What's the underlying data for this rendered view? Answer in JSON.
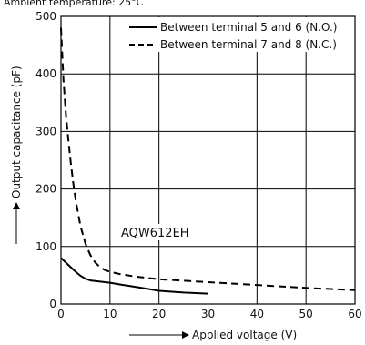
{
  "chart_data": {
    "type": "line",
    "title": "Ambient temperature: 25°C",
    "xlabel": "Applied voltage (V)",
    "ylabel": "Output capacitance (pF)",
    "xlim": [
      0,
      60
    ],
    "ylim": [
      0,
      500
    ],
    "x_ticks": [
      0,
      10,
      20,
      30,
      40,
      50,
      60
    ],
    "y_ticks": [
      0,
      100,
      200,
      300,
      400,
      500
    ],
    "grid": true,
    "legend_position": "top-right",
    "annotation": "AQW612EH",
    "series": [
      {
        "name": "Between terminal 5 and 6 (N.O.)",
        "style": "solid",
        "x": [
          0,
          1,
          2,
          3,
          4,
          5,
          6,
          8,
          10,
          12,
          15,
          18,
          20,
          25,
          30
        ],
        "y": [
          80,
          72,
          64,
          56,
          49,
          44,
          41,
          39,
          37,
          34,
          30,
          26,
          23,
          20,
          18
        ]
      },
      {
        "name": "Between terminal 7 and 8 (N.C.)",
        "style": "dashed",
        "x": [
          0,
          0.5,
          1,
          1.5,
          2,
          2.5,
          3,
          4,
          5,
          6,
          7,
          8,
          9,
          10,
          12,
          15,
          20,
          30,
          40,
          50,
          60
        ],
        "y": [
          480,
          390,
          330,
          285,
          245,
          210,
          180,
          135,
          105,
          85,
          72,
          64,
          59,
          56,
          52,
          48,
          43,
          38,
          33,
          28,
          24
        ]
      }
    ]
  }
}
